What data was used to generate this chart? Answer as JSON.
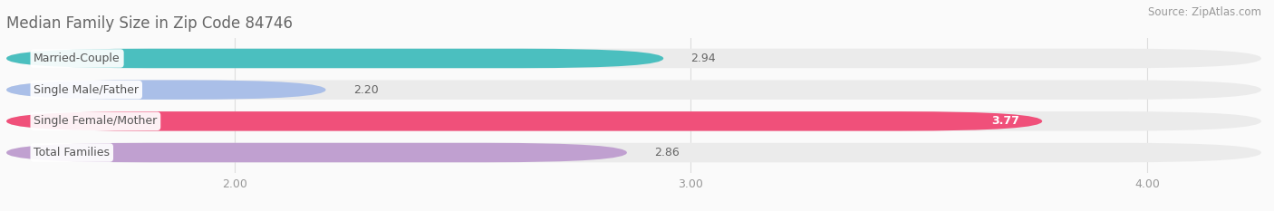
{
  "title": "Median Family Size in Zip Code 84746",
  "source": "Source: ZipAtlas.com",
  "categories": [
    "Married-Couple",
    "Single Male/Father",
    "Single Female/Mother",
    "Total Families"
  ],
  "values": [
    2.94,
    2.2,
    3.77,
    2.86
  ],
  "bar_colors": [
    "#4BBFBF",
    "#AABFE8",
    "#F0507A",
    "#C0A0D0"
  ],
  "bar_bg_color": "#EBEBEB",
  "xlim_left": 1.5,
  "xlim_right": 4.25,
  "xticks": [
    2.0,
    3.0,
    4.0
  ],
  "xtick_labels": [
    "2.00",
    "3.00",
    "4.00"
  ],
  "bar_height": 0.62,
  "bar_gap": 0.38,
  "label_fontsize": 9,
  "value_fontsize": 9,
  "title_fontsize": 12,
  "source_fontsize": 8.5,
  "title_color": "#666666",
  "source_color": "#999999",
  "tick_color": "#999999",
  "grid_color": "#DDDDDD",
  "value_inside_color": "#FFFFFF",
  "value_outside_color": "#666666",
  "label_text_color": "#555555",
  "bg_color": "#FAFAFA",
  "inside_threshold": 3.5
}
